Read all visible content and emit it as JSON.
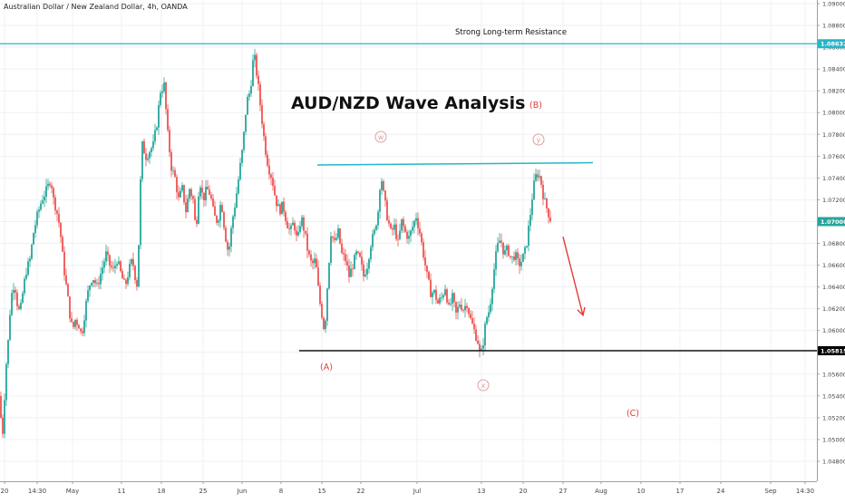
{
  "header": {
    "symbol_title": "Australian Dollar / New Zealand Dollar, 4h, OANDA"
  },
  "annotations": {
    "main_title": "AUD/NZD Wave Analysis",
    "resistance_label": "Strong Long-term Resistance",
    "wave_labels": [
      "(A)",
      "w",
      "x",
      "y",
      "(B)",
      "(C)"
    ]
  },
  "colors": {
    "up_candle": "#26a69a",
    "down_candle": "#ef5350",
    "resistance_line": "#26b6c9",
    "support_line": "#000000",
    "wave_label": "#e53935",
    "circle_label": "#e0a0a0",
    "current_price_tag": "#26a69a",
    "grid": "#eef1f4",
    "axis_text": "#444444"
  },
  "chart_data": {
    "type": "candlestick",
    "symbol": "AUD/NZD",
    "timeframe": "4h",
    "source": "OANDA",
    "title": "AUD/NZD Wave Analysis",
    "ylim": [
      1.0472,
      1.0902
    ],
    "y_ticks": [
      "1.09000",
      "1.08800",
      "1.08600",
      "1.08400",
      "1.08200",
      "1.08000",
      "1.07800",
      "1.07600",
      "1.07400",
      "1.07200",
      "1.07000",
      "1.06800",
      "1.06600",
      "1.06400",
      "1.06200",
      "1.06000",
      "1.05800",
      "1.05600",
      "1.05400",
      "1.05200",
      "1.05000",
      "1.04800"
    ],
    "x_ticks": [
      "20",
      "14:30",
      "May",
      "11",
      "18",
      "25",
      "Jun",
      "8",
      "15",
      "22",
      "Jul",
      "13",
      "20",
      "27",
      "Aug",
      "10",
      "17",
      "24",
      "Sep",
      "14:30"
    ],
    "horizontal_lines": [
      {
        "price": 1.08632,
        "label": "1.08632",
        "role": "strong long-term resistance"
      },
      {
        "price": 1.05815,
        "label": "1.05815",
        "role": "support"
      }
    ],
    "trend_line": {
      "from_price": 1.0752,
      "to_price": 1.0754,
      "from_date": "Jun 15",
      "to_date": "Jul 27"
    },
    "current_price": "1.07000",
    "projection_arrow": {
      "from_price": 1.0686,
      "to_price": 1.0614,
      "direction": "down"
    },
    "waves": [
      {
        "label": "(A)",
        "price": 1.0582,
        "date": "Jun 15"
      },
      {
        "label": "w",
        "price": 1.0755,
        "date": "Jun 24"
      },
      {
        "label": "x",
        "price": 1.0572,
        "date": "Jul 13"
      },
      {
        "label": "y",
        "price": 1.0757,
        "date": "Jul 22"
      },
      {
        "label": "(B)",
        "price": 1.0757,
        "date": "Jul 22"
      },
      {
        "label": "(C)",
        "date": "Aug 2",
        "projected": true
      }
    ],
    "price_path": [
      [
        0,
        1.054
      ],
      [
        1,
        1.052
      ],
      [
        2,
        1.0495
      ],
      [
        4,
        1.052
      ],
      [
        6,
        1.056
      ],
      [
        9,
        1.059
      ],
      [
        12,
        1.063
      ],
      [
        16,
        1.0645
      ],
      [
        19,
        1.0625
      ],
      [
        22,
        1.0615
      ],
      [
        26,
        1.064
      ],
      [
        29,
        1.0655
      ],
      [
        33,
        1.0665
      ],
      [
        37,
        1.069
      ],
      [
        41,
        1.0705
      ],
      [
        46,
        1.072
      ],
      [
        52,
        1.073
      ],
      [
        56,
        1.074
      ],
      [
        59,
        1.072
      ],
      [
        62,
        1.0712
      ],
      [
        66,
        1.0695
      ],
      [
        70,
        1.066
      ],
      [
        74,
        1.0635
      ],
      [
        77,
        1.0615
      ],
      [
        80,
        1.06
      ],
      [
        83,
        1.061
      ],
      [
        87,
        1.0605
      ],
      [
        90,
        1.0595
      ],
      [
        94,
        1.062
      ],
      [
        98,
        1.064
      ],
      [
        102,
        1.065
      ],
      [
        107,
        1.064
      ],
      [
        112,
        1.0655
      ],
      [
        117,
        1.067
      ],
      [
        121,
        1.066
      ],
      [
        125,
        1.0655
      ],
      [
        129,
        1.0665
      ],
      [
        134,
        1.065
      ],
      [
        138,
        1.064
      ],
      [
        142,
        1.0655
      ],
      [
        146,
        1.0665
      ],
      [
        150,
        1.0645
      ],
      [
        152,
        1.064
      ],
      [
        154,
        1.072
      ],
      [
        157,
        1.077
      ],
      [
        161,
        1.076
      ],
      [
        165,
        1.0765
      ],
      [
        169,
        1.077
      ],
      [
        173,
        1.079
      ],
      [
        177,
        1.082
      ],
      [
        181,
        1.0825
      ],
      [
        185,
        1.078
      ],
      [
        189,
        1.075
      ],
      [
        193,
        1.074
      ],
      [
        197,
        1.072
      ],
      [
        201,
        1.073
      ],
      [
        205,
        1.071
      ],
      [
        209,
        1.073
      ],
      [
        213,
        1.072
      ],
      [
        216,
        1.069
      ],
      [
        220,
        1.074
      ],
      [
        224,
        1.072
      ],
      [
        228,
        1.073
      ],
      [
        232,
        1.0725
      ],
      [
        236,
        1.0705
      ],
      [
        240,
        1.07
      ],
      [
        244,
        1.072
      ],
      [
        248,
        1.069
      ],
      [
        252,
        1.067
      ],
      [
        256,
        1.07
      ],
      [
        260,
        1.072
      ],
      [
        264,
        1.0745
      ],
      [
        268,
        1.077
      ],
      [
        272,
        1.081
      ],
      [
        276,
        1.082
      ],
      [
        280,
        1.0855
      ],
      [
        284,
        1.083
      ],
      [
        288,
        1.08
      ],
      [
        292,
        1.077
      ],
      [
        296,
        1.075
      ],
      [
        300,
        1.074
      ],
      [
        304,
        1.072
      ],
      [
        308,
        1.071
      ],
      [
        312,
        1.0715
      ],
      [
        316,
        1.07
      ],
      [
        320,
        1.069
      ],
      [
        324,
        1.07
      ],
      [
        328,
        1.068
      ],
      [
        332,
        1.0705
      ],
      [
        336,
        1.069
      ],
      [
        340,
        1.067
      ],
      [
        344,
        1.066
      ],
      [
        348,
        1.0665
      ],
      [
        352,
        1.063
      ],
      [
        355,
        1.0615
      ],
      [
        358,
        1.0598
      ],
      [
        361,
        1.064
      ],
      [
        365,
        1.069
      ],
      [
        369,
        1.068
      ],
      [
        373,
        1.069
      ],
      [
        377,
        1.067
      ],
      [
        381,
        1.0665
      ],
      [
        385,
        1.065
      ],
      [
        389,
        1.066
      ],
      [
        393,
        1.067
      ],
      [
        397,
        1.0665
      ],
      [
        401,
        1.065
      ],
      [
        405,
        1.066
      ],
      [
        409,
        1.068
      ],
      [
        413,
        1.069
      ],
      [
        417,
        1.071
      ],
      [
        420,
        1.0745
      ],
      [
        423,
        1.0725
      ],
      [
        427,
        1.0705
      ],
      [
        431,
        1.069
      ],
      [
        435,
        1.0695
      ],
      [
        439,
        1.068
      ],
      [
        443,
        1.07
      ],
      [
        447,
        1.069
      ],
      [
        451,
        1.0685
      ],
      [
        455,
        1.0695
      ],
      [
        459,
        1.0705
      ],
      [
        463,
        1.069
      ],
      [
        467,
        1.067
      ],
      [
        471,
        1.065
      ],
      [
        475,
        1.0635
      ],
      [
        479,
        1.0635
      ],
      [
        483,
        1.0625
      ],
      [
        487,
        1.063
      ],
      [
        491,
        1.064
      ],
      [
        495,
        1.062
      ],
      [
        499,
        1.063
      ],
      [
        503,
        1.0615
      ],
      [
        507,
        1.0625
      ],
      [
        511,
        1.062
      ],
      [
        515,
        1.0625
      ],
      [
        519,
        1.061
      ],
      [
        523,
        1.06
      ],
      [
        527,
        1.059
      ],
      [
        530,
        1.0575
      ],
      [
        533,
        1.059
      ],
      [
        536,
        1.061
      ],
      [
        540,
        1.062
      ],
      [
        544,
        1.065
      ],
      [
        548,
        1.0675
      ],
      [
        552,
        1.0685
      ],
      [
        556,
        1.067
      ],
      [
        560,
        1.0675
      ],
      [
        564,
        1.0665
      ],
      [
        568,
        1.067
      ],
      [
        572,
        1.066
      ],
      [
        576,
        1.0665
      ],
      [
        580,
        1.0675
      ],
      [
        584,
        1.07
      ],
      [
        588,
        1.073
      ],
      [
        592,
        1.0745
      ],
      [
        596,
        1.074
      ],
      [
        600,
        1.072
      ],
      [
        604,
        1.071
      ],
      [
        608,
        1.07
      ]
    ]
  }
}
